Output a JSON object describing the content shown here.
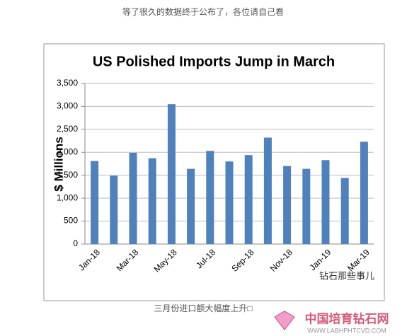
{
  "header": "等了很久的数据终于公布了，各位请自己看",
  "chart_data": {
    "type": "bar",
    "title": "US Polished Imports Jump in March",
    "y_label": "$ Millions",
    "categories": [
      "Jan-18",
      null,
      "Mar-18",
      null,
      "May-18",
      null,
      "Jul-18",
      null,
      "Sep-18",
      null,
      "Nov-18",
      null,
      "Jan-19",
      null,
      "Mar-19"
    ],
    "values": [
      1810,
      1490,
      1990,
      1870,
      3050,
      1640,
      2030,
      1800,
      1940,
      2320,
      1700,
      1640,
      1830,
      1440,
      2230
    ],
    "color": "#4f81bd",
    "ylim": [
      0,
      3500
    ],
    "yticks": [
      0,
      500,
      {
        "value": 1000,
        "label": "1,000"
      },
      {
        "value": 1500,
        "label": "1,500"
      },
      {
        "value": 2000,
        "label": "2,000"
      },
      {
        "value": 2500,
        "label": "2,500"
      },
      {
        "value": 3000,
        "label": "3,000"
      },
      {
        "value": 3500,
        "label": "3,500"
      }
    ],
    "grid": true
  },
  "overlay": "钻石那些事儿",
  "caption": "三月份进口额大幅度上升□",
  "watermark": {
    "name": "中国培育钻石网",
    "url": "WWW.LABHPHTCVD.COM"
  }
}
